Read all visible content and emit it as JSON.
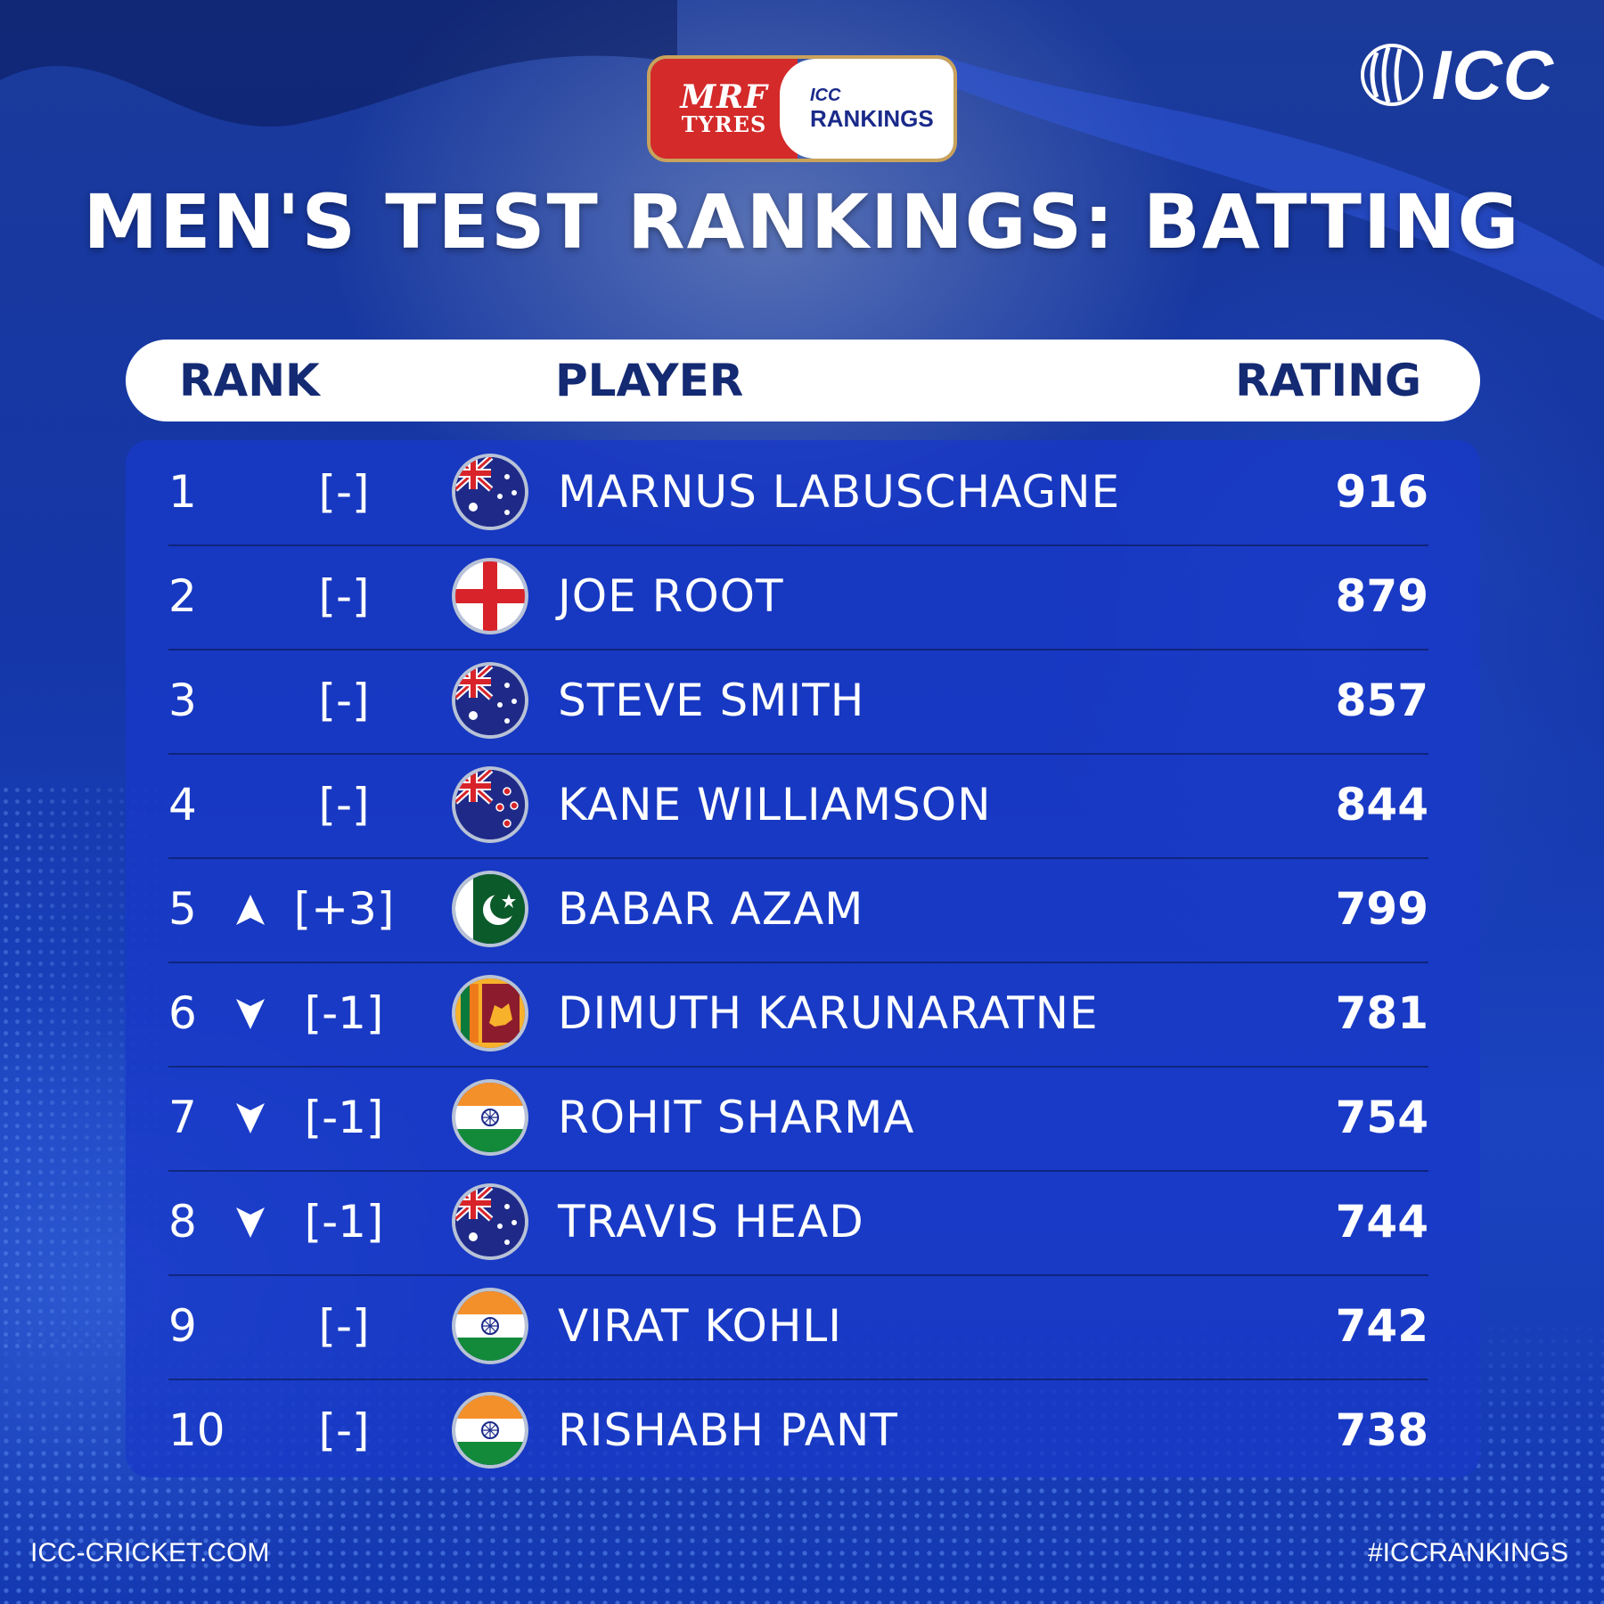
{
  "sponsor": {
    "brand_top": "MRF",
    "brand_bottom": "TYRES",
    "rankings_top": "ICC",
    "rankings_bottom": "RANKINGS"
  },
  "logo": {
    "text": "ICC"
  },
  "title": "MEN'S TEST RANKINGS: BATTING",
  "headers": {
    "rank": "RANK",
    "player": "PLAYER",
    "rating": "RATING"
  },
  "rows": [
    {
      "rank": "1",
      "trend": "none",
      "change": "[-]",
      "flag": "australia",
      "name": "MARNUS LABUSCHAGNE",
      "rating": "916"
    },
    {
      "rank": "2",
      "trend": "none",
      "change": "[-]",
      "flag": "england",
      "name": "JOE ROOT",
      "rating": "879"
    },
    {
      "rank": "3",
      "trend": "none",
      "change": "[-]",
      "flag": "australia",
      "name": "STEVE SMITH",
      "rating": "857"
    },
    {
      "rank": "4",
      "trend": "none",
      "change": "[-]",
      "flag": "new-zealand",
      "name": "KANE WILLIAMSON",
      "rating": "844"
    },
    {
      "rank": "5",
      "trend": "up",
      "change": "[+3]",
      "flag": "pakistan",
      "name": "BABAR AZAM",
      "rating": "799"
    },
    {
      "rank": "6",
      "trend": "down",
      "change": "[-1]",
      "flag": "sri-lanka",
      "name": "DIMUTH KARUNARATNE",
      "rating": "781"
    },
    {
      "rank": "7",
      "trend": "down",
      "change": "[-1]",
      "flag": "india",
      "name": "ROHIT SHARMA",
      "rating": "754"
    },
    {
      "rank": "8",
      "trend": "down",
      "change": "[-1]",
      "flag": "australia",
      "name": "TRAVIS HEAD",
      "rating": "744"
    },
    {
      "rank": "9",
      "trend": "none",
      "change": "[-]",
      "flag": "india",
      "name": "VIRAT KOHLI",
      "rating": "742"
    },
    {
      "rank": "10",
      "trend": "none",
      "change": "[-]",
      "flag": "india",
      "name": "RISHABH PANT",
      "rating": "738"
    }
  ],
  "footer": {
    "left": "ICC-CRICKET.COM",
    "right": "#ICCRANKINGS"
  },
  "colors": {
    "background": "#1436a8",
    "panel": "#1838c8",
    "header_text": "#142a73",
    "sponsor_red": "#d42a2a"
  }
}
